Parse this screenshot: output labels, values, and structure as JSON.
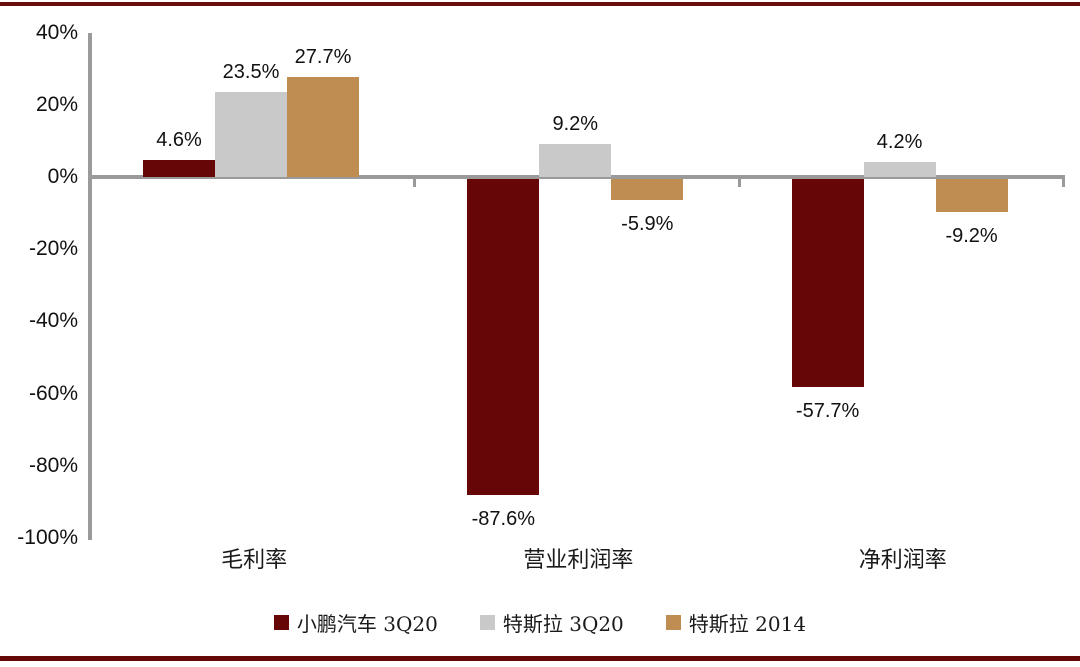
{
  "page": {
    "background": "#ffffff",
    "top_rule_color": "#6B0D0D",
    "bottom_rule_color": "#640808"
  },
  "chart_data": {
    "type": "bar",
    "title": "",
    "xlabel": "",
    "ylabel": "",
    "categories": [
      "毛利率",
      "营业利润率",
      "净利润率"
    ],
    "series": [
      {
        "name": "小鹏汽车 3Q20",
        "color": "#660606",
        "values": [
          4.6,
          -87.6,
          -57.7
        ],
        "labels": [
          "4.6%",
          "-87.6%",
          "-57.7%"
        ]
      },
      {
        "name": "特斯拉 3Q20",
        "color": "#C9C9C9",
        "values": [
          23.5,
          9.2,
          4.2
        ],
        "labels": [
          "23.5%",
          "9.2%",
          "4.2%"
        ]
      },
      {
        "name": "特斯拉 2014",
        "color": "#BF8C51",
        "values": [
          27.7,
          -5.9,
          -9.2
        ],
        "labels": [
          "27.7%",
          "-5.9%",
          "-9.2%"
        ]
      }
    ],
    "ylim": [
      -100,
      40
    ],
    "yticks": [
      40,
      20,
      0,
      -20,
      -40,
      -60,
      -80,
      -100
    ],
    "ytick_labels": [
      "40%",
      "20%",
      "0%",
      "-20%",
      "-40%",
      "-60%",
      "-80%",
      "-100%"
    ],
    "grid": false,
    "legend_position": "bottom",
    "axis_color": "#9A9A9A",
    "value_label_suffix": "%"
  }
}
